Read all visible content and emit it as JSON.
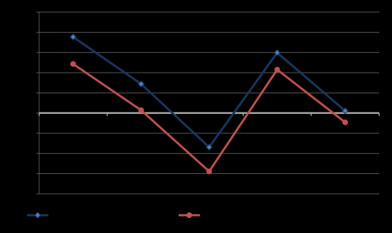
{
  "chart_data": {
    "type": "line",
    "categories": [
      null,
      null,
      null,
      null,
      null
    ],
    "series": [
      {
        "color": "#17375e",
        "marker_fill": "#4f81bd",
        "marker": "diamond",
        "values": [
          3.77,
          1.44,
          -1.69,
          2.99,
          0.11
        ]
      },
      {
        "color": "#c0504d",
        "marker_fill": "#c0504d",
        "marker": "circle",
        "values": [
          2.43,
          0.14,
          -2.89,
          2.15,
          -0.46
        ]
      }
    ],
    "ylim": [
      -4,
      5
    ],
    "yticks": [
      -4,
      -3,
      -2,
      -1,
      0,
      1,
      2,
      3,
      4,
      5
    ],
    "grid": true,
    "legend": "bottom"
  }
}
